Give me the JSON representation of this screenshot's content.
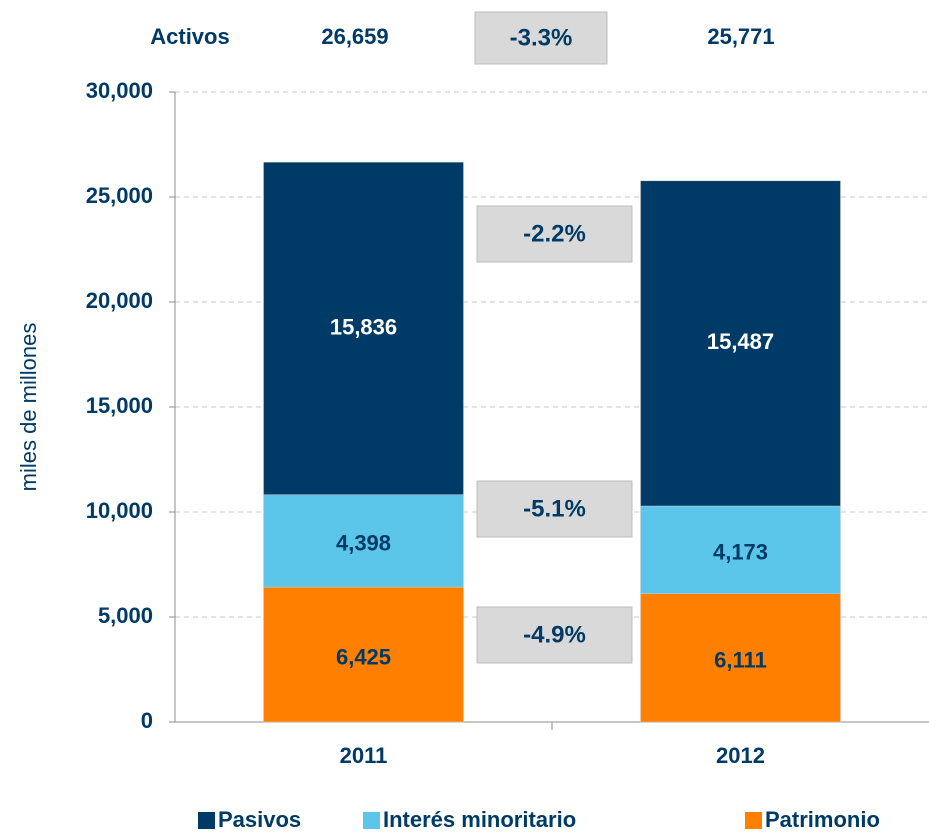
{
  "chart_data": {
    "type": "stacked_bar",
    "y_label": "miles de millones",
    "categories": [
      "2011",
      "2012"
    ],
    "series": [
      {
        "name": "Patrimonio",
        "color": "#ff7f00",
        "label_color": "#003a66",
        "values": [
          6425,
          6111
        ],
        "value_labels": [
          "6,425",
          "6,111"
        ]
      },
      {
        "name": "Interés minoritario",
        "color": "#5bc5ea",
        "label_color": "#003a66",
        "values": [
          4398,
          4173
        ],
        "value_labels": [
          "4,398",
          "4,173"
        ]
      },
      {
        "name": "Pasivos",
        "color": "#003a66",
        "label_color": "#ffffff",
        "values": [
          15836,
          15487
        ],
        "value_labels": [
          "15,836",
          "15,487"
        ]
      }
    ],
    "legend_order": [
      2,
      1,
      0
    ],
    "ylim": [
      0,
      30000
    ],
    "yticks": [
      0,
      {
        "value": 5000,
        "label": "5,000"
      },
      {
        "value": 10000,
        "label": "10,000"
      },
      {
        "value": 15000,
        "label": "15,000"
      },
      {
        "value": 20000,
        "label": "20,000"
      },
      {
        "value": 25000,
        "label": "25,000"
      },
      {
        "value": 30000,
        "label": "30,000"
      }
    ],
    "grid": true,
    "totals": {
      "label": "Activos",
      "labels": [
        "26,659",
        "25,771"
      ]
    },
    "changes": [
      "-3.3%",
      "-2.2%",
      "-5.1%",
      "-4.9%"
    ]
  }
}
